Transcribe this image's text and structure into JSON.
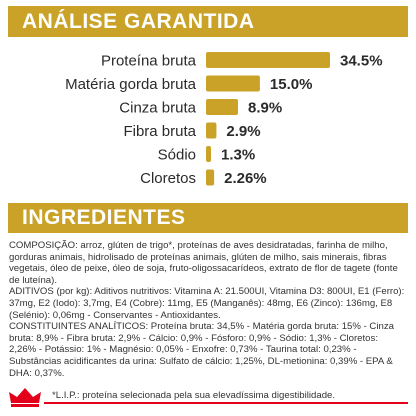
{
  "section_titles": {
    "analysis": "ANÁLISE GARANTIDA",
    "ingredients": "INGREDIENTES"
  },
  "colors": {
    "gold": "#C9A227",
    "brand_red": "#E2001A",
    "text": "#333333"
  },
  "chart_data": {
    "type": "bar",
    "orientation": "horizontal",
    "categories": [
      "Proteína bruta",
      "Matéria gorda bruta",
      "Cinza bruta",
      "Fibra bruta",
      "Sódio",
      "Cloretos"
    ],
    "values": [
      34.5,
      15.0,
      8.9,
      2.9,
      1.3,
      2.26
    ],
    "value_labels": [
      "34.5%",
      "15.0%",
      "8.9%",
      "2.9%",
      "1.3%",
      "2.26%"
    ],
    "unit": "%",
    "grid": false,
    "legend": "none"
  },
  "ingredients": {
    "composicao": "COMPOSIÇÃO: arroz, glúten de trigo*, proteínas de aves desidratadas, farinha de milho, gorduras animais, hidrolisado de proteínas animais, glúten de milho, sais minerais, fibras vegetais, óleo de peixe, óleo de soja, fruto-oligossacarídeos, extrato de flor de tagete (fonte de luteína).",
    "aditivos": "ADITIVOS (por kg): Aditivos nutritivos: Vitamina A: 21.500UI, Vitamina D3: 800UI, E1 (Ferro): 37mg, E2 (Iodo): 3,7mg, E4 (Cobre): 11mg, E5 (Manganês): 48mg, E6 (Zinco): 136mg, E8 (Selénio): 0,06mg - Conservantes - Antioxidantes.",
    "constituintes": "CONSTITUINTES ANALÍTICOS: Proteína bruta: 34,5% - Matéria gorda bruta: 15% - Cinza bruta: 8,9% - Fibra bruta: 2,9% - Cálcio: 0,9% - Fósforo: 0,9% - Sódio: 1,3% - Cloretos: 2,26% - Potássio: 1% - Magnésio: 0,05% - Enxofre: 0,73% - Taurina total: 0,23% - Substâncias acidificantes da urina: Sulfato de cálcio: 1,25%, DL-metionina: 0,39% - EPA & DHA: 0,37%.",
    "footnote": "*L.I.P.: proteína selecionada pela sua elevadíssima digestibilidade."
  }
}
